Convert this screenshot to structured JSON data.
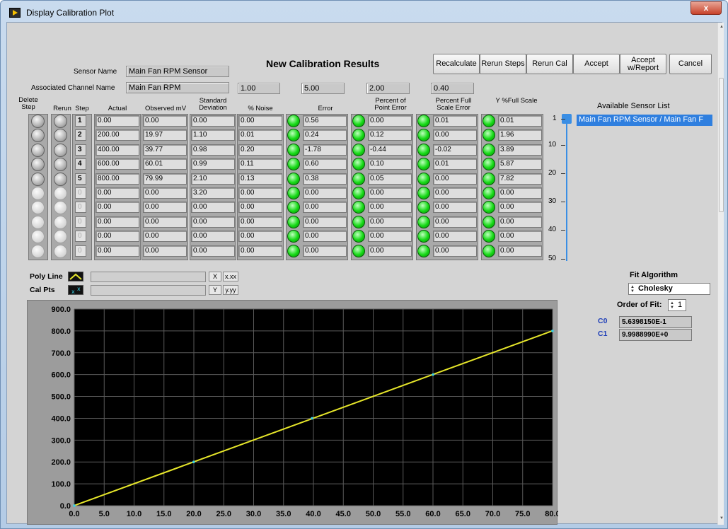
{
  "window": {
    "title": "Display Calibration Plot",
    "close_label": "x"
  },
  "heading": "New Calibration Results",
  "sensor": {
    "name_label": "Sensor Name",
    "name_value": "Main Fan RPM Sensor",
    "channel_label": "Associated Channel Name",
    "channel_value": "Main Fan RPM"
  },
  "limits": [
    "1.00",
    "5.00",
    "2.00",
    "0.40"
  ],
  "buttons": {
    "recalculate": "Recalculate",
    "rerun_steps": "Rerun Steps",
    "rerun_cal": "Rerun Cal",
    "accept": "Accept",
    "accept_report": "Accept w/Report",
    "cancel": "Cancel"
  },
  "table": {
    "headers": {
      "delete": "Delete Step",
      "rerun": "Rerun",
      "step": "Step",
      "actual": "Actual",
      "observed": "Observed mV",
      "stddev": "Standard Deviation",
      "noise": "% Noise",
      "error": "Error",
      "pct_point": "Percent of Point Error",
      "pct_full": "Percent Full Scale Error",
      "y_full": "Y %Full Scale"
    },
    "rows": [
      {
        "step": "1",
        "actual": "0.00",
        "observed": "0.00",
        "stddev": "0.00",
        "noise": "0.00",
        "error": "0.56",
        "pct_point": "0.00",
        "pct_full": "0.01",
        "y_full": "0.01",
        "active": true
      },
      {
        "step": "2",
        "actual": "200.00",
        "observed": "19.97",
        "stddev": "1.10",
        "noise": "0.01",
        "error": "0.24",
        "pct_point": "0.12",
        "pct_full": "0.00",
        "y_full": "1.96",
        "active": true
      },
      {
        "step": "3",
        "actual": "400.00",
        "observed": "39.77",
        "stddev": "0.98",
        "noise": "0.20",
        "error": "-1.78",
        "pct_point": "-0.44",
        "pct_full": "-0.02",
        "y_full": "3.89",
        "active": true
      },
      {
        "step": "4",
        "actual": "600.00",
        "observed": "60.01",
        "stddev": "0.99",
        "noise": "0.11",
        "error": "0.60",
        "pct_point": "0.10",
        "pct_full": "0.01",
        "y_full": "5.87",
        "active": true
      },
      {
        "step": "5",
        "actual": "800.00",
        "observed": "79.99",
        "stddev": "2.10",
        "noise": "0.13",
        "error": "0.38",
        "pct_point": "0.05",
        "pct_full": "0.00",
        "y_full": "7.82",
        "active": true
      },
      {
        "step": "0",
        "actual": "0.00",
        "observed": "0.00",
        "stddev": "3.20",
        "noise": "0.00",
        "error": "0.00",
        "pct_point": "0.00",
        "pct_full": "0.00",
        "y_full": "0.00",
        "active": false
      },
      {
        "step": "0",
        "actual": "0.00",
        "observed": "0.00",
        "stddev": "0.00",
        "noise": "0.00",
        "error": "0.00",
        "pct_point": "0.00",
        "pct_full": "0.00",
        "y_full": "0.00",
        "active": false
      },
      {
        "step": "0",
        "actual": "0.00",
        "observed": "0.00",
        "stddev": "0.00",
        "noise": "0.00",
        "error": "0.00",
        "pct_point": "0.00",
        "pct_full": "0.00",
        "y_full": "0.00",
        "active": false
      },
      {
        "step": "0",
        "actual": "0.00",
        "observed": "0.00",
        "stddev": "0.00",
        "noise": "0.00",
        "error": "0.00",
        "pct_point": "0.00",
        "pct_full": "0.00",
        "y_full": "0.00",
        "active": false
      },
      {
        "step": "0",
        "actual": "0.00",
        "observed": "0.00",
        "stddev": "0.00",
        "noise": "0.00",
        "error": "0.00",
        "pct_point": "0.00",
        "pct_full": "0.00",
        "y_full": "0.00",
        "active": false
      }
    ]
  },
  "ruler": {
    "ticks": [
      "1",
      "10",
      "20",
      "30",
      "40",
      "50"
    ]
  },
  "sensor_list": {
    "title": "Available Sensor List",
    "items": [
      "Main Fan RPM Sensor / Main Fan F"
    ]
  },
  "legend": {
    "poly_line": "Poly Line",
    "cal_pts": "Cal Pts",
    "x_scale": "X",
    "y_scale": "Y"
  },
  "fit": {
    "title": "Fit Algorithm",
    "algorithm": "Cholesky",
    "order_label": "Order of Fit:",
    "order": "1",
    "c0_label": "C0",
    "c0": "5.6398150E-1",
    "c1_label": "C1",
    "c1": "9.9988990E+0"
  },
  "colors": {
    "plot_bg": "#000000",
    "line": "#e6e62a",
    "grid": "#5a5a5a",
    "led": "#15d915",
    "selection": "#2f7fdf"
  },
  "chart_data": {
    "type": "line",
    "xlim": [
      0,
      80
    ],
    "ylim": [
      0,
      900
    ],
    "x_ticks": [
      "0.0",
      "5.0",
      "10.0",
      "15.0",
      "20.0",
      "25.0",
      "30.0",
      "35.0",
      "40.0",
      "45.0",
      "50.0",
      "55.0",
      "60.0",
      "65.0",
      "70.0",
      "75.0",
      "80.0"
    ],
    "y_ticks": [
      "0.0",
      "100.0",
      "200.0",
      "300.0",
      "400.0",
      "500.0",
      "600.0",
      "700.0",
      "800.0",
      "900.0"
    ],
    "grid": true,
    "series": [
      {
        "name": "Poly Line",
        "x": [
          0,
          80
        ],
        "y": [
          0.56,
          800.47
        ]
      }
    ],
    "points": {
      "name": "Cal Pts",
      "x": [
        0,
        19.97,
        39.77,
        60.01,
        79.99
      ],
      "y": [
        0,
        200,
        400,
        600,
        800
      ]
    }
  }
}
